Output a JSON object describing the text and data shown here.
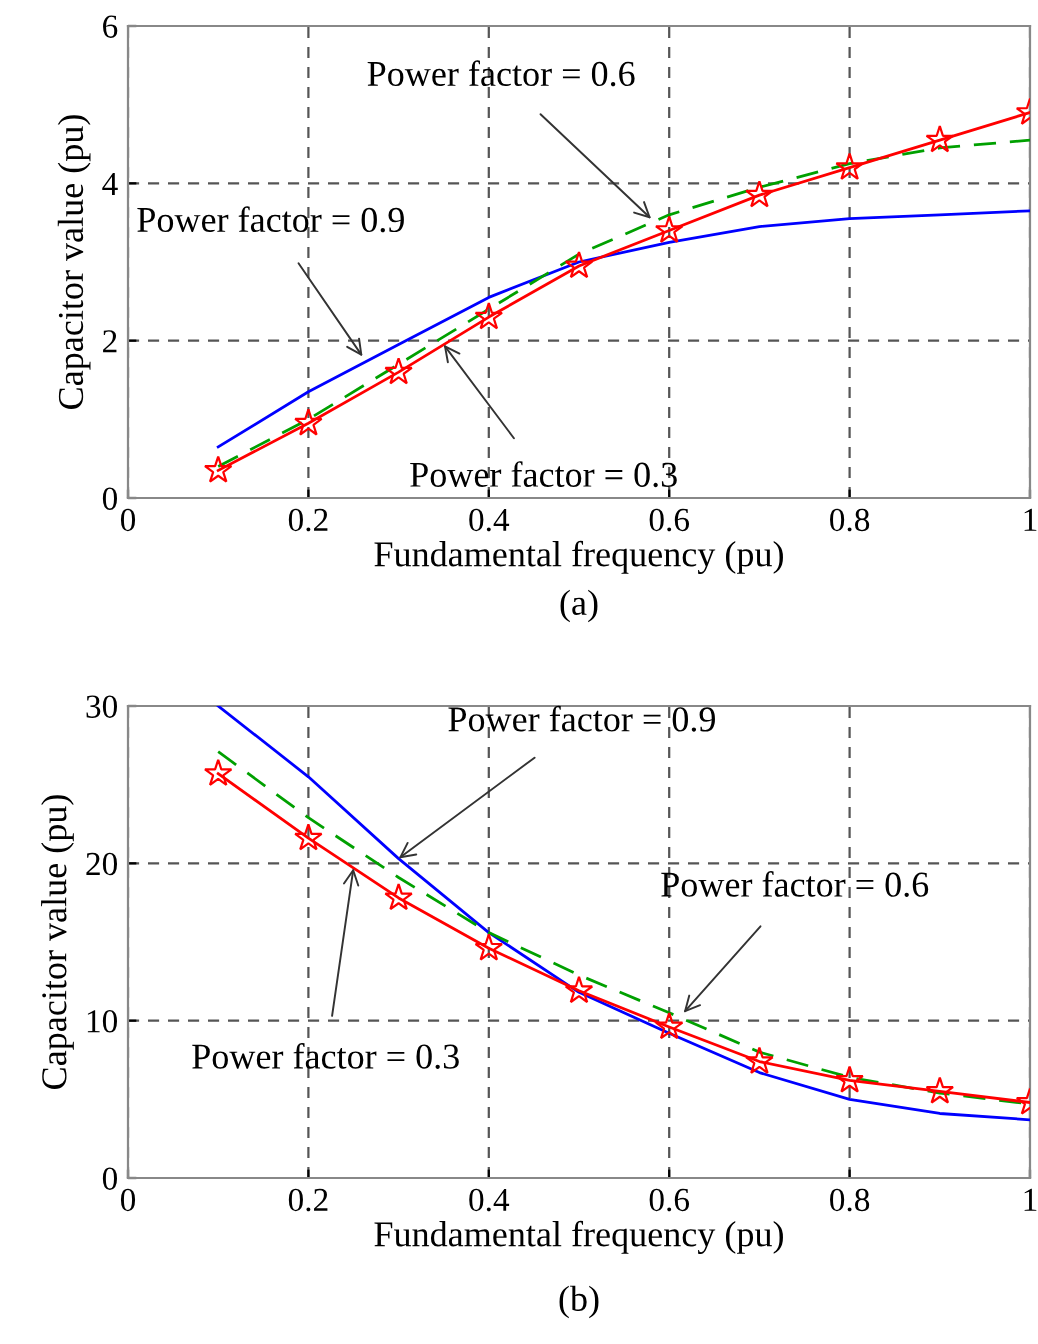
{
  "chart_data": [
    {
      "type": "line",
      "xlabel": "Fundamental frequency (pu)",
      "ylabel": "Capacitor value (pu)",
      "x": [
        0.1,
        0.2,
        0.3,
        0.4,
        0.5,
        0.6,
        0.7,
        0.8,
        0.9,
        1.0
      ],
      "xlim": [
        0,
        1
      ],
      "ylim": [
        0,
        6
      ],
      "xticks": [
        0,
        0.2,
        0.4,
        0.6,
        0.8,
        1
      ],
      "yticks": [
        0,
        2,
        4,
        6
      ],
      "grid": true,
      "legend": false,
      "series": [
        {
          "color": "#0000ff",
          "line_style": "solid",
          "marker": "none",
          "values": [
            0.65,
            1.35,
            1.95,
            2.55,
            3.0,
            3.25,
            3.45,
            3.55,
            3.6,
            3.65
          ]
        },
        {
          "color": "#00a000",
          "line_style": "dashed",
          "marker": "none",
          "values": [
            0.4,
            1.0,
            1.7,
            2.4,
            3.1,
            3.6,
            3.95,
            4.25,
            4.45,
            4.55
          ]
        },
        {
          "color": "#ff0000",
          "line_style": "solid",
          "marker": "star",
          "values": [
            0.35,
            0.95,
            1.6,
            2.3,
            2.95,
            3.4,
            3.85,
            4.2,
            4.55,
            4.9
          ]
        }
      ],
      "annotations": [
        {
          "text": "Power factor = 0.6",
          "x": 0.58,
          "y": 3.55
        },
        {
          "text": "Power factor = 0.9",
          "x": 0.26,
          "y": 1.8
        },
        {
          "text": "Power factor = 0.3",
          "x": 0.35,
          "y": 1.95
        },
        "(a)"
      ]
    },
    {
      "type": "line",
      "xlabel": "Fundamental frequency (pu)",
      "ylabel": "Capacitor value (pu)",
      "x": [
        0.1,
        0.2,
        0.3,
        0.4,
        0.5,
        0.6,
        0.7,
        0.8,
        0.9,
        1.0
      ],
      "xlim": [
        0,
        1
      ],
      "ylim": [
        0,
        30
      ],
      "xticks": [
        0,
        0.2,
        0.4,
        0.6,
        0.8,
        1
      ],
      "yticks": [
        0,
        10,
        20,
        30
      ],
      "grid": true,
      "legend": false,
      "series": [
        {
          "color": "#0000ff",
          "line_style": "solid",
          "marker": "none",
          "values": [
            30,
            25.5,
            20.3,
            15.6,
            11.8,
            9.2,
            6.7,
            5.0,
            4.1,
            3.7
          ]
        },
        {
          "color": "#00a000",
          "line_style": "dashed",
          "marker": "none",
          "values": [
            27.1,
            22.9,
            19.1,
            15.6,
            12.9,
            10.5,
            8.0,
            6.4,
            5.4,
            4.7
          ]
        },
        {
          "color": "#ff0000",
          "line_style": "solid",
          "marker": "star",
          "values": [
            25.7,
            21.6,
            17.8,
            14.6,
            11.9,
            9.6,
            7.4,
            6.2,
            5.5,
            4.8
          ]
        }
      ],
      "annotations": [
        {
          "text": "Power factor = 0.9",
          "x": 0.3,
          "y": 20.3
        },
        {
          "text": "Power factor = 0.6",
          "x": 0.616,
          "y": 10.5
        },
        {
          "text": "Power factor = 0.3",
          "x": 0.25,
          "y": 19.7
        },
        "(b)"
      ]
    }
  ]
}
